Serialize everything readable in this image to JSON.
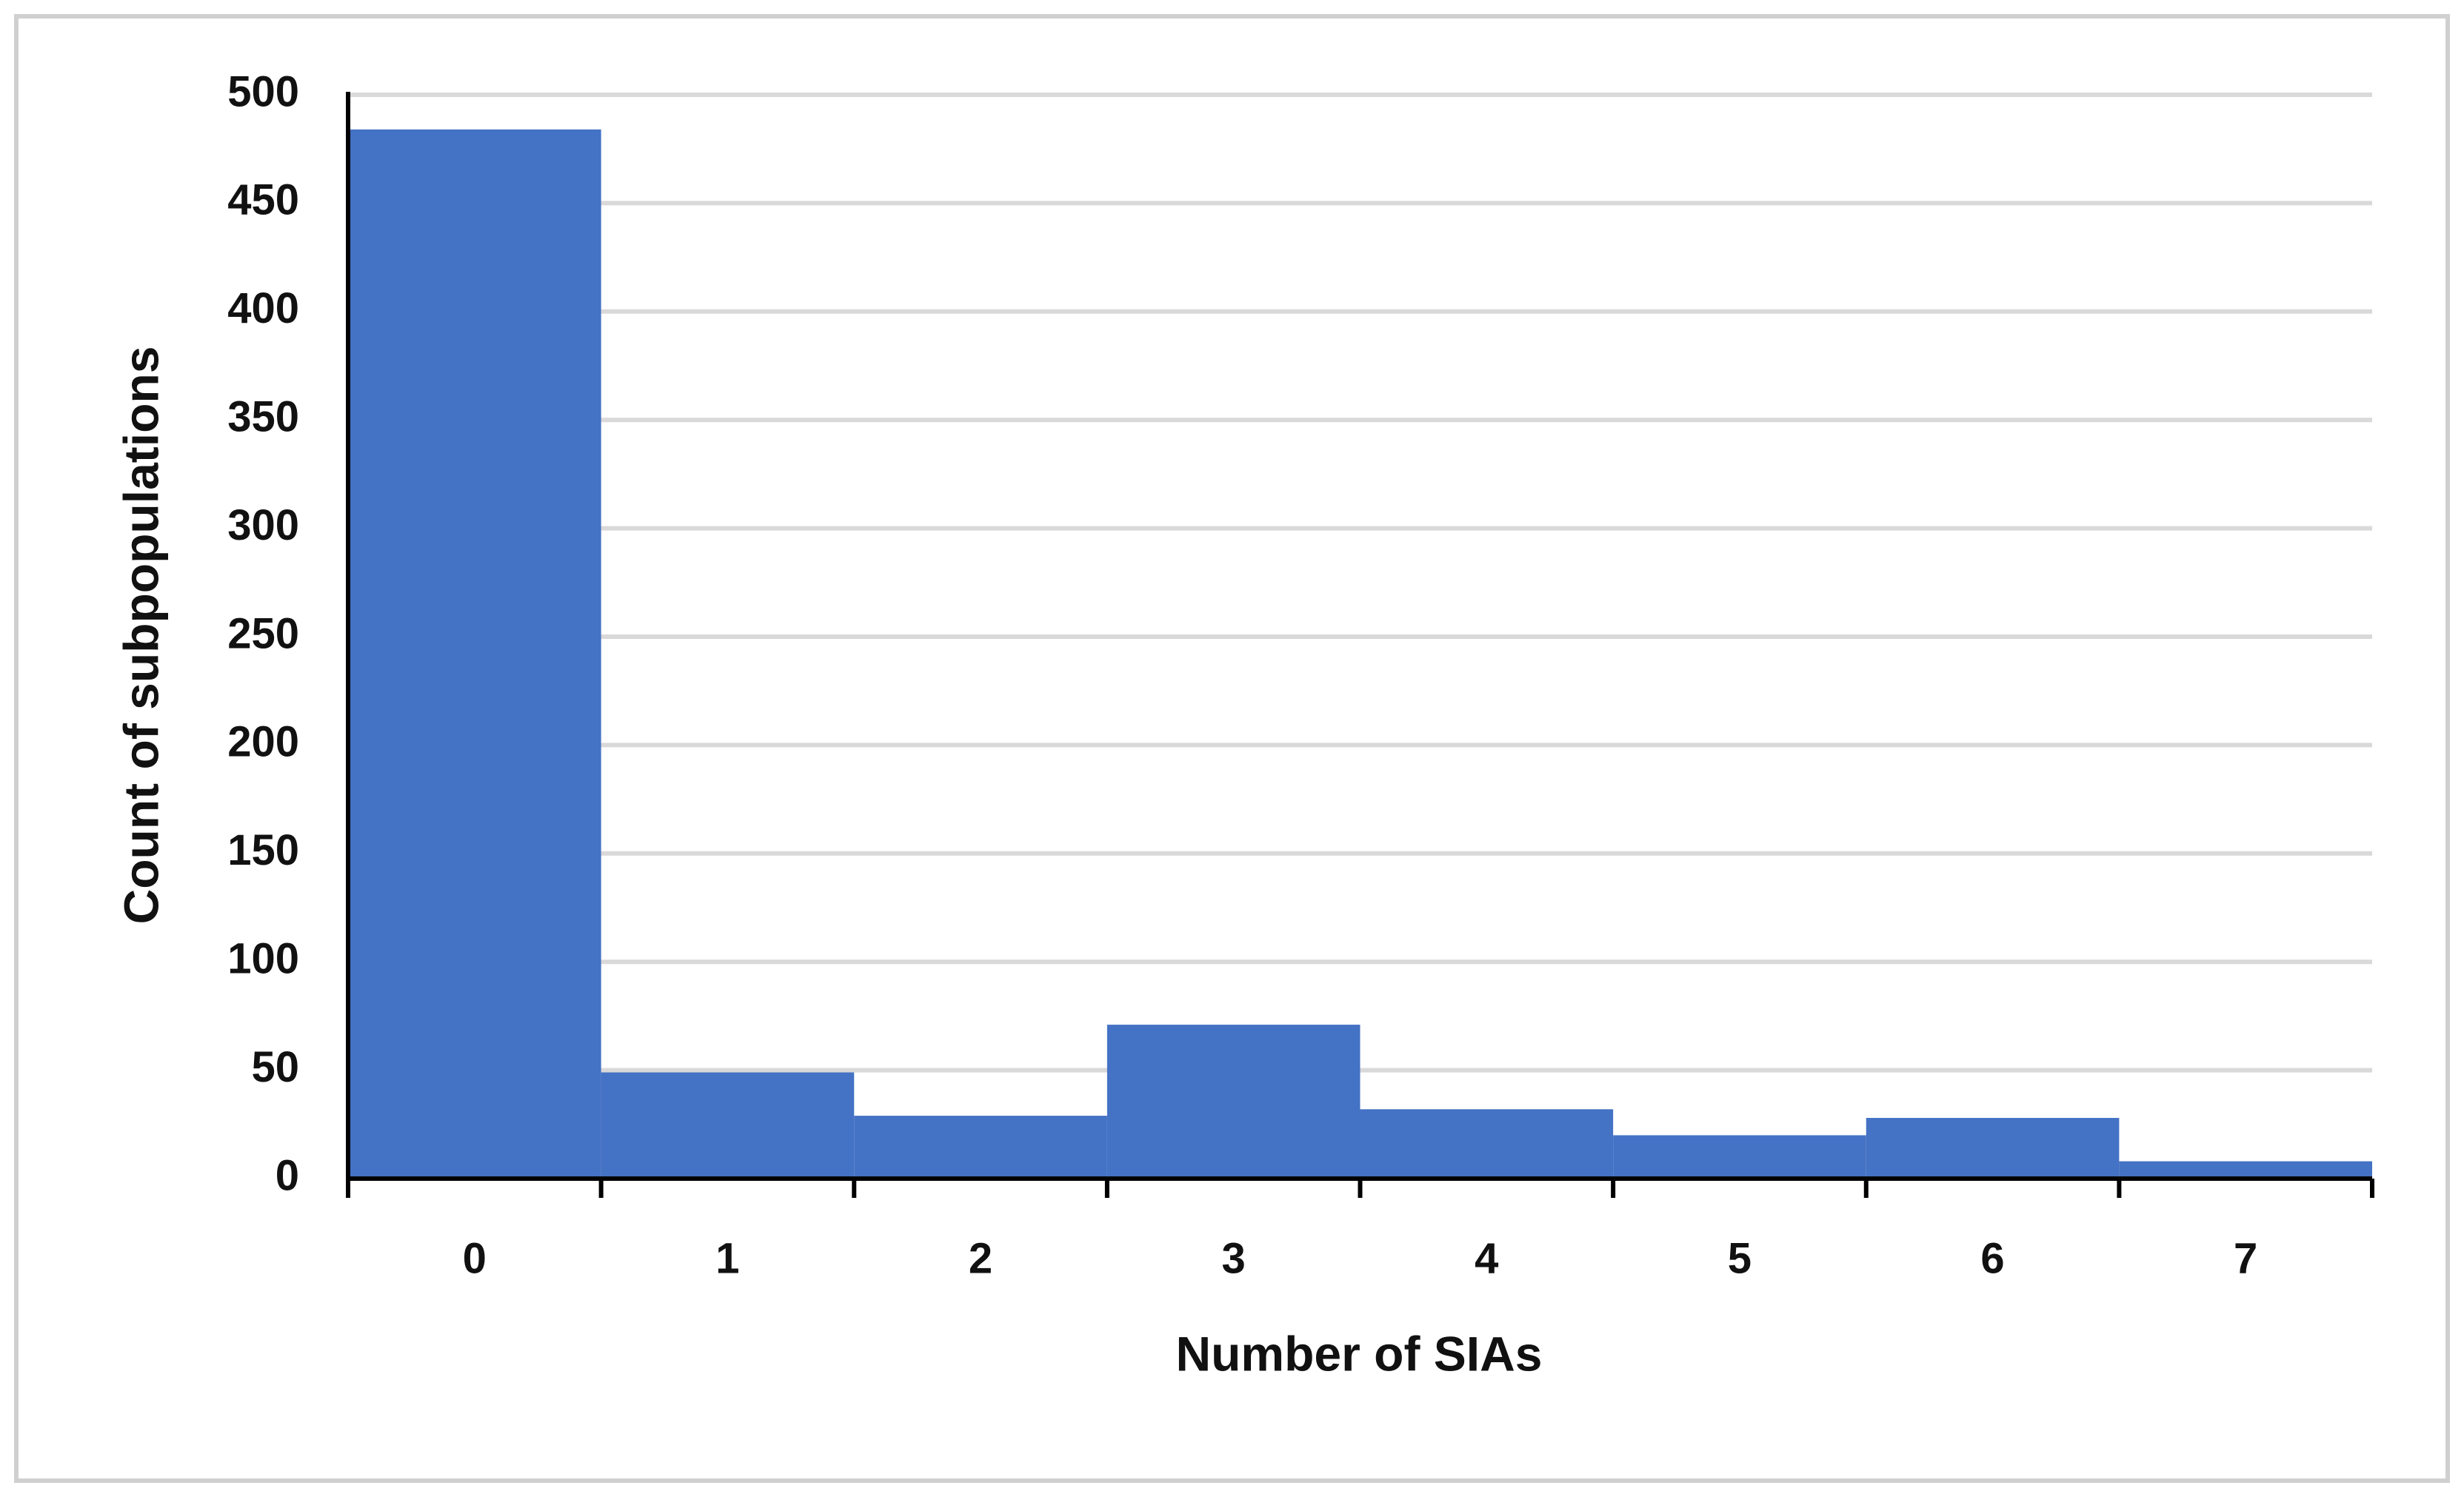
{
  "chart_data": {
    "type": "bar",
    "x_label": "Number of SIAs",
    "y_label": "Count of subpopulations",
    "categories": [
      "0",
      "1",
      "2",
      "3",
      "4",
      "5",
      "6",
      "7"
    ],
    "values": [
      484,
      49,
      29,
      71,
      32,
      20,
      28,
      8
    ],
    "color": "#4472c4",
    "ylim": [
      0,
      500
    ],
    "yticks": [
      0,
      50,
      100,
      150,
      200,
      250,
      300,
      350,
      400,
      450,
      500
    ],
    "grid": true
  }
}
